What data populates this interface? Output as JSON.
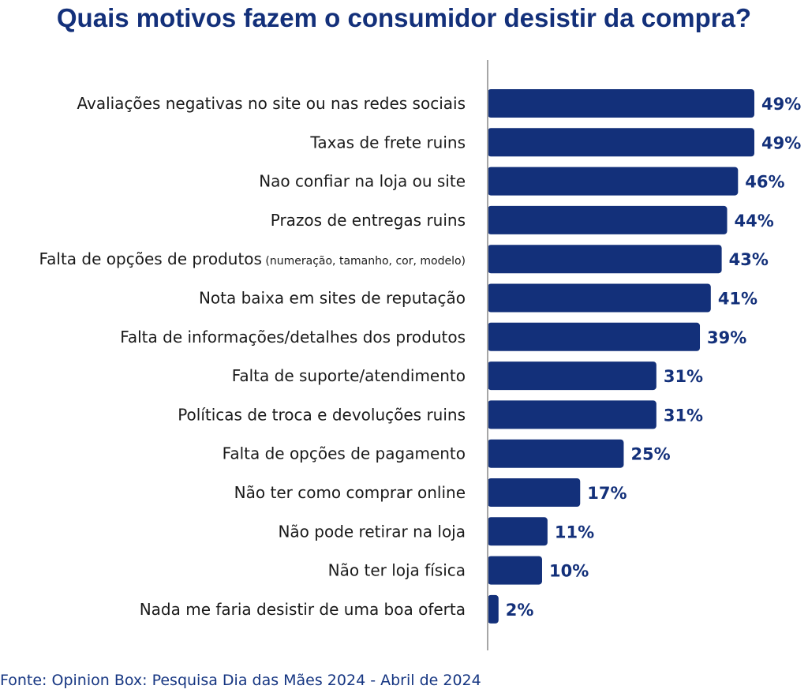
{
  "chart_data": {
    "type": "bar",
    "orientation": "horizontal",
    "title": "Quais motivos fazem o consumidor desistir da compra?",
    "categories": [
      {
        "label": "Avaliações negativas no site ou nas redes sociais",
        "note": ""
      },
      {
        "label": "Taxas de frete ruins",
        "note": ""
      },
      {
        "label": "Nao confiar na loja ou site",
        "note": ""
      },
      {
        "label": "Prazos de entregas ruins",
        "note": ""
      },
      {
        "label": "Falta de opções de produtos",
        "note": "(numeração, tamanho, cor, modelo)"
      },
      {
        "label": "Nota baixa em sites de reputação",
        "note": ""
      },
      {
        "label": "Falta de informações/detalhes dos produtos",
        "note": ""
      },
      {
        "label": "Falta de suporte/atendimento",
        "note": ""
      },
      {
        "label": "Políticas de troca e devoluções ruins",
        "note": ""
      },
      {
        "label": "Falta de opções de pagamento",
        "note": ""
      },
      {
        "label": "Não ter como comprar online",
        "note": ""
      },
      {
        "label": "Não pode retirar na loja",
        "note": ""
      },
      {
        "label": "Não ter loja física",
        "note": ""
      },
      {
        "label": "Nada me faria desistir de uma boa oferta",
        "note": ""
      }
    ],
    "values": [
      49,
      49,
      46,
      44,
      43,
      41,
      39,
      31,
      31,
      25,
      17,
      11,
      10,
      2
    ],
    "value_suffix": "%",
    "xlim": [
      0,
      49
    ],
    "grid": false,
    "bar_color": "#13307a",
    "axis_color": "#a6a6a6"
  },
  "source": "Fonte: Opinion Box: Pesquisa Dia das Mães 2024 - Abril de 2024"
}
